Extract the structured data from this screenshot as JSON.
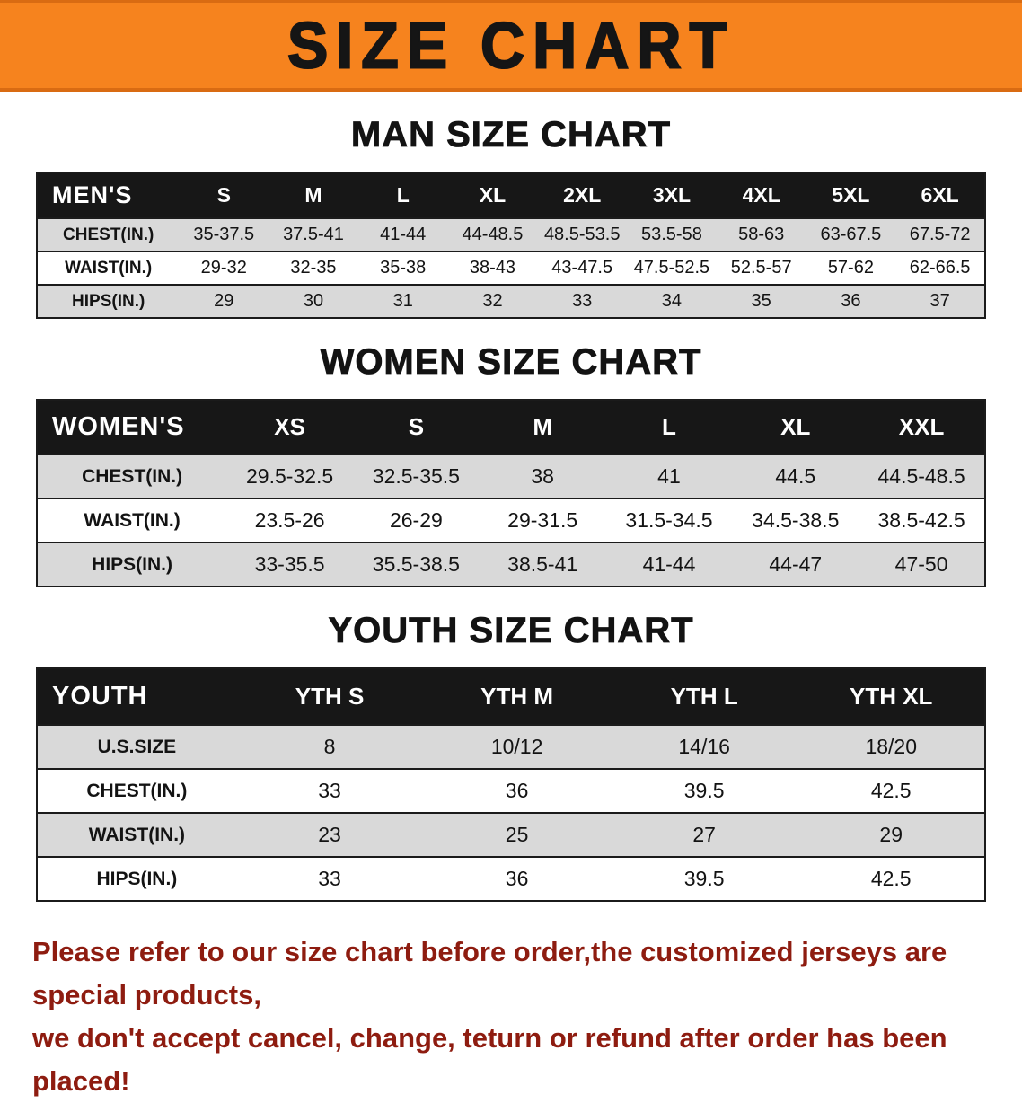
{
  "banner": {
    "title": "SIZE CHART"
  },
  "colors": {
    "banner_bg": "#f6831e",
    "table_header_bg": "#171717",
    "row_stripe": "#d9d9d9",
    "footer_text": "#8e1c10"
  },
  "sections": {
    "men": {
      "heading": "MAN SIZE CHART",
      "table": {
        "id": "mens",
        "header_label": "MEN'S",
        "columns": [
          "S",
          "M",
          "L",
          "XL",
          "2XL",
          "3XL",
          "4XL",
          "5XL",
          "6XL"
        ],
        "rows": [
          {
            "label": "CHEST(IN.)",
            "values": [
              "35-37.5",
              "37.5-41",
              "41-44",
              "44-48.5",
              "48.5-53.5",
              "53.5-58",
              "58-63",
              "63-67.5",
              "67.5-72"
            ]
          },
          {
            "label": "WAIST(IN.)",
            "values": [
              "29-32",
              "32-35",
              "35-38",
              "38-43",
              "43-47.5",
              "47.5-52.5",
              "52.5-57",
              "57-62",
              "62-66.5"
            ]
          },
          {
            "label": "HIPS(IN.)",
            "values": [
              "29",
              "30",
              "31",
              "32",
              "33",
              "34",
              "35",
              "36",
              "37"
            ]
          }
        ]
      }
    },
    "women": {
      "heading": "WOMEN SIZE CHART",
      "table": {
        "id": "womens",
        "header_label": "WOMEN'S",
        "columns": [
          "XS",
          "S",
          "M",
          "L",
          "XL",
          "XXL"
        ],
        "rows": [
          {
            "label": "CHEST(IN.)",
            "values": [
              "29.5-32.5",
              "32.5-35.5",
              "38",
              "41",
              "44.5",
              "44.5-48.5"
            ]
          },
          {
            "label": "WAIST(IN.)",
            "values": [
              "23.5-26",
              "26-29",
              "29-31.5",
              "31.5-34.5",
              "34.5-38.5",
              "38.5-42.5"
            ]
          },
          {
            "label": "HIPS(IN.)",
            "values": [
              "33-35.5",
              "35.5-38.5",
              "38.5-41",
              "41-44",
              "44-47",
              "47-50"
            ]
          }
        ]
      }
    },
    "youth": {
      "heading": "YOUTH SIZE CHART",
      "table": {
        "id": "youth",
        "header_label": "YOUTH",
        "columns": [
          "YTH S",
          "YTH M",
          "YTH L",
          "YTH XL"
        ],
        "rows": [
          {
            "label": "U.S.SIZE",
            "values": [
              "8",
              "10/12",
              "14/16",
              "18/20"
            ]
          },
          {
            "label": "CHEST(IN.)",
            "values": [
              "33",
              "36",
              "39.5",
              "42.5"
            ]
          },
          {
            "label": "WAIST(IN.)",
            "values": [
              "23",
              "25",
              "27",
              "29"
            ]
          },
          {
            "label": "HIPS(IN.)",
            "values": [
              "33",
              "36",
              "39.5",
              "42.5"
            ]
          }
        ]
      }
    }
  },
  "footer": {
    "line1": "Please refer to our size chart before order,the customized jerseys are special products,",
    "line2": "we don't accept cancel, change, teturn or refund after order has been placed!"
  }
}
